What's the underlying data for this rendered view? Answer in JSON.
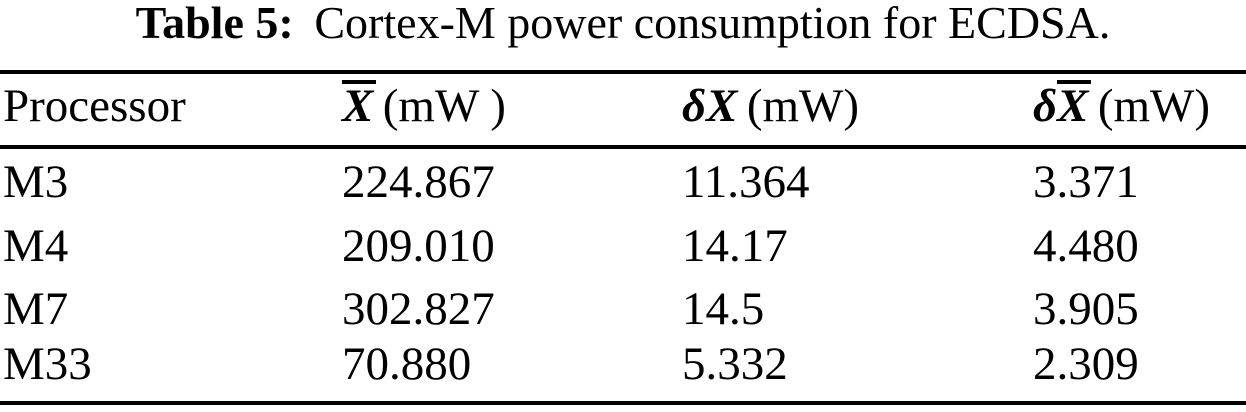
{
  "title": {
    "label": "Table 5:",
    "text": "Cortex-M power consumption for ECDSA."
  },
  "colors": {
    "text": "#000000",
    "background": "#ffffff"
  },
  "table": {
    "columns": [
      {
        "label": "Processor"
      },
      {
        "prefix": "",
        "symbol": "X",
        "overline": true,
        "unit": "(mW )"
      },
      {
        "prefix": "δ",
        "symbol": "X",
        "overline": false,
        "unit": "(mW)"
      },
      {
        "prefix": "δ",
        "symbol": "X",
        "overline": true,
        "unit": "(mW)"
      }
    ],
    "rows": [
      {
        "cells": [
          "M3",
          "224.867",
          "11.364",
          "3.371"
        ]
      },
      {
        "cells": [
          "M4",
          "209.010",
          "14.17",
          "4.480"
        ]
      },
      {
        "cells": [
          "M7",
          "302.827",
          "14.5",
          "3.905"
        ]
      },
      {
        "cells": [
          "M33",
          "70.880",
          "5.332",
          "2.309"
        ]
      }
    ]
  }
}
